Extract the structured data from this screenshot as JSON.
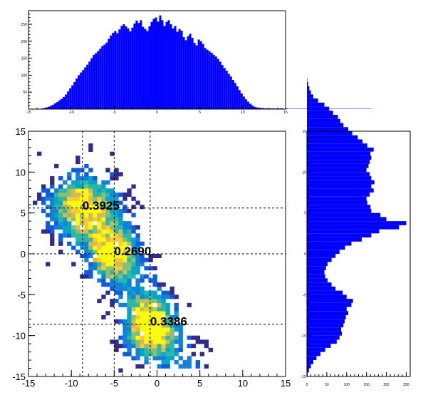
{
  "colors": {
    "histogram_fill": "#0000ff",
    "histogram_stroke": "#0000cc",
    "palette": [
      "#352a87",
      "#0f5cdd",
      "#1481d6",
      "#06a4ca",
      "#2eb7a4",
      "#87bf77",
      "#d1bb59",
      "#fec832",
      "#f9fb0e"
    ]
  },
  "chart_data": [
    {
      "type": "bar",
      "panel": "top-projection",
      "title": "",
      "xlabel": "",
      "ylabel": "",
      "xlim": [
        -15,
        15
      ],
      "ylim": [
        0,
        290
      ],
      "x_ticks": [
        "-15",
        "-10",
        "-5",
        "0",
        "5",
        "10",
        "15"
      ],
      "y_ticks": [
        "50",
        "100",
        "150",
        "200",
        "250"
      ],
      "bin_width": 0.25,
      "bin_start": -15,
      "values": [
        0,
        0,
        0,
        0,
        0,
        1,
        2,
        3,
        5,
        7,
        10,
        13,
        17,
        21,
        26,
        30,
        36,
        43,
        52,
        61,
        70,
        80,
        90,
        100,
        108,
        115,
        123,
        131,
        140,
        150,
        160,
        165,
        171,
        178,
        186,
        190,
        196,
        207,
        217,
        225,
        230,
        224,
        235,
        245,
        250,
        244,
        238,
        229,
        240,
        252,
        261,
        254,
        262,
        242,
        236,
        230,
        244,
        257,
        266,
        270,
        258,
        276,
        262,
        245,
        257,
        262,
        250,
        238,
        245,
        228,
        236,
        231,
        212,
        203,
        215,
        222,
        210,
        195,
        188,
        205,
        200,
        192,
        180,
        175,
        170,
        166,
        160,
        155,
        148,
        140,
        130,
        121,
        113,
        104,
        96,
        86,
        77,
        67,
        56,
        46,
        37,
        29,
        22,
        16,
        11,
        7,
        5,
        4,
        3,
        3,
        2,
        2,
        2,
        2,
        2,
        1,
        2,
        2,
        2,
        1,
        2,
        1,
        1,
        1,
        1,
        1,
        1,
        1,
        1,
        1,
        1,
        1,
        1,
        1,
        1,
        1,
        1,
        1,
        1,
        1,
        1,
        1,
        1,
        1,
        1,
        1,
        1,
        1,
        1,
        1,
        1,
        1,
        1,
        1,
        1,
        1,
        1,
        1,
        1,
        1,
        0,
        0,
        0,
        0,
        0,
        0,
        0,
        0,
        0,
        0,
        0,
        0,
        0,
        0,
        0,
        0,
        0,
        0,
        0,
        0
      ]
    },
    {
      "type": "bar",
      "panel": "right-projection",
      "orientation": "horizontal",
      "title": "",
      "xlabel": "",
      "ylabel": "",
      "ylim": [
        -15,
        15
      ],
      "xlim": [
        0,
        260
      ],
      "x_ticks": [
        "0",
        "50",
        "100",
        "150",
        "200",
        "250"
      ],
      "y_ticks": [
        "-15",
        "-10",
        "-5",
        "0",
        "5",
        "10",
        "15"
      ],
      "bin_width": 0.5,
      "bin_start": -15,
      "values": [
        2,
        5,
        10,
        16,
        24,
        34,
        46,
        60,
        75,
        82,
        88,
        86,
        92,
        95,
        98,
        104,
        100,
        112,
        116,
        100,
        90,
        72,
        62,
        52,
        46,
        44,
        48,
        52,
        62,
        72,
        82,
        96,
        112,
        138,
        162,
        182,
        232,
        250,
        200,
        185,
        162,
        160,
        152,
        150,
        158,
        168,
        162,
        170,
        162,
        158,
        150,
        155,
        158,
        162,
        160,
        168,
        152,
        140,
        128,
        114,
        104,
        92,
        84,
        78,
        66,
        56,
        44,
        28,
        16,
        10,
        6,
        3,
        1,
        0,
        0,
        0,
        0,
        0,
        0,
        0
      ]
    },
    {
      "type": "heatmap",
      "panel": "main-2d",
      "title": "",
      "xlabel": "",
      "ylabel": "",
      "xlim": [
        -15,
        15
      ],
      "ylim": [
        -15,
        15
      ],
      "x_ticks": [
        "-15",
        "-10",
        "-5",
        "0",
        "5",
        "10",
        "15"
      ],
      "y_ticks": [
        "-15",
        "-10",
        "-5",
        "0",
        "5",
        "10",
        "15"
      ],
      "clusters": [
        {
          "center": [
            -8.5,
            5.8
          ],
          "sigma": [
            2.4,
            2.6
          ],
          "weight": 0.3925
        },
        {
          "center": [
            -5.0,
            0.2
          ],
          "sigma": [
            1.7,
            2.0
          ],
          "weight": 0.269
        },
        {
          "center": [
            -0.8,
            -9.0
          ],
          "sigma": [
            1.7,
            2.1
          ],
          "weight": 0.3386
        }
      ],
      "guide_lines_x": [
        -8.7,
        -5.0,
        -0.8
      ],
      "guide_lines_y": [
        5.6,
        0.0,
        -8.6
      ],
      "annotations": [
        {
          "text": "0.3925",
          "x": -8.7,
          "y": 5.6
        },
        {
          "text": "0.2690",
          "x": -5.0,
          "y": 0.0
        },
        {
          "text": "0.3386",
          "x": -0.8,
          "y": -8.6
        }
      ]
    }
  ]
}
